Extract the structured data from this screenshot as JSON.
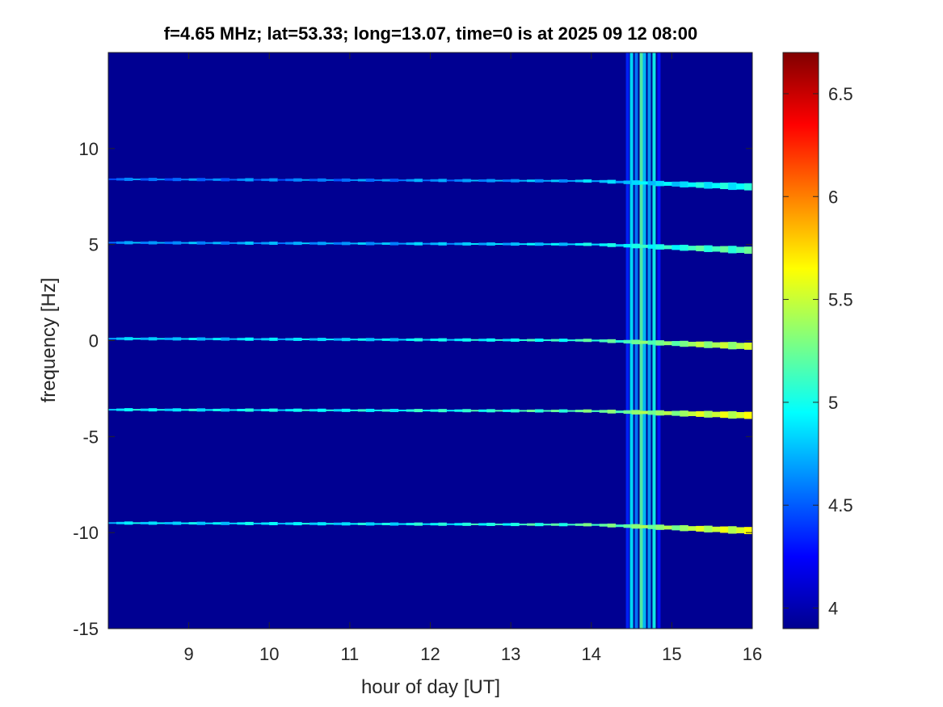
{
  "chart_data": {
    "type": "heatmap",
    "title": "f=4.65 MHz;  lat=53.33; long=13.07, time=0 is at 2025 09 12 08:00",
    "xlabel": "hour of day [UT]",
    "ylabel": "frequency [Hz]",
    "xlim": [
      8,
      16
    ],
    "ylim": [
      -15,
      15
    ],
    "xticks": [
      9,
      10,
      11,
      12,
      13,
      14,
      15,
      16
    ],
    "xtick_labels": [
      "9",
      "10",
      "11",
      "12",
      "13",
      "14",
      "15",
      "16"
    ],
    "yticks": [
      -15,
      -10,
      -5,
      0,
      5,
      10
    ],
    "ytick_labels": [
      "-15",
      "-10",
      "-5",
      "0",
      "5",
      "10"
    ],
    "colorbar": {
      "clim": [
        3.9,
        6.7
      ],
      "ticks": [
        4,
        4.5,
        5,
        5.5,
        6,
        6.5
      ],
      "tick_labels": [
        "4",
        "4.5",
        "5",
        "5.5",
        "6",
        "6.5"
      ],
      "colormap": "jet"
    },
    "background_value": 3.95,
    "horizontal_traces": [
      {
        "start_freq": 8.4,
        "end_freq": 8.0,
        "start_value": 4.45,
        "end_value": 4.9
      },
      {
        "start_freq": 5.1,
        "end_freq": 4.7,
        "start_value": 4.55,
        "end_value": 5.1
      },
      {
        "start_freq": 0.1,
        "end_freq": -0.3,
        "start_value": 4.7,
        "end_value": 5.4
      },
      {
        "start_freq": -3.6,
        "end_freq": -3.9,
        "start_value": 4.8,
        "end_value": 5.5
      },
      {
        "start_freq": -9.5,
        "end_freq": -9.9,
        "start_value": 4.75,
        "end_value": 5.5
      }
    ],
    "vertical_features": [
      {
        "x": 14.45,
        "value": 4.35
      },
      {
        "x": 14.5,
        "value": 4.9
      },
      {
        "x": 14.56,
        "value": 4.6
      },
      {
        "x": 14.62,
        "value": 5.2
      },
      {
        "x": 14.66,
        "value": 4.8
      },
      {
        "x": 14.72,
        "value": 4.7
      },
      {
        "x": 14.78,
        "value": 5.0
      },
      {
        "x": 14.84,
        "value": 4.3
      }
    ]
  }
}
